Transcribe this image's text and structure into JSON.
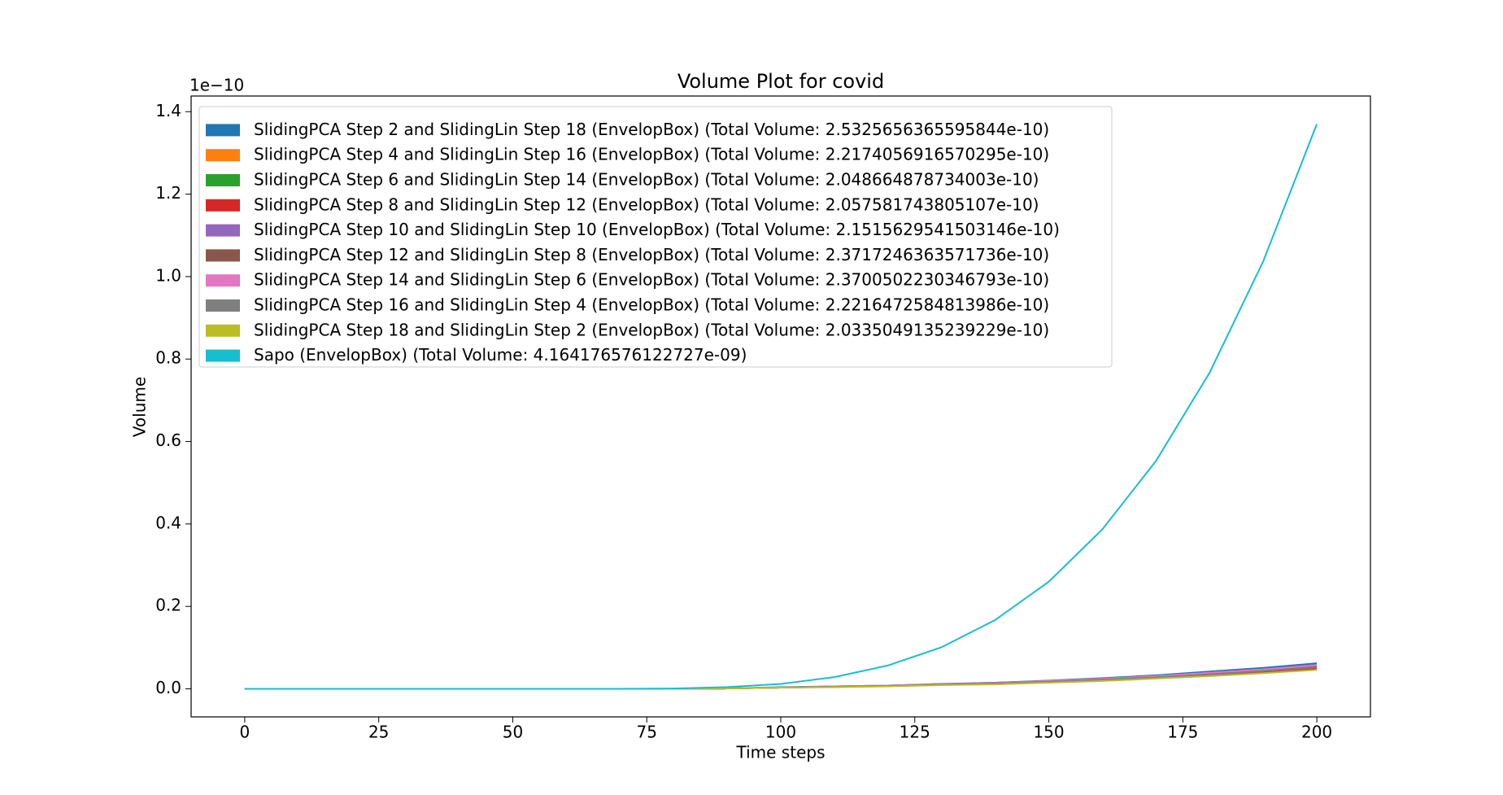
{
  "chart_data": {
    "type": "line",
    "title": "Volume Plot for covid",
    "x_label": "Time steps",
    "y_label": "Volume",
    "y_offset_label": "1e−10",
    "x": [
      0,
      10,
      20,
      30,
      40,
      50,
      60,
      70,
      80,
      90,
      100,
      110,
      120,
      130,
      140,
      150,
      160,
      170,
      180,
      190,
      200
    ],
    "xlim": [
      -10,
      210
    ],
    "xticks": [
      0,
      25,
      50,
      75,
      100,
      125,
      150,
      175,
      200
    ],
    "ylim": [
      -0.068,
      1.438
    ],
    "yticks": [
      {
        "value": 0,
        "label": "0.0"
      },
      0.2,
      0.4,
      0.6,
      0.8,
      {
        "value": 1,
        "label": "1.0"
      },
      1.2,
      1.4
    ],
    "legend": "upper left",
    "series": [
      {
        "name": "SlidingPCA Step 2 and SlidingLin Step 18 (EnvelopBox) (Total Volume: 2.5325656365595844e-10)",
        "color": "#1f77b4",
        "values": [
          0,
          0,
          0,
          0,
          0,
          0,
          0,
          0,
          0,
          0.001,
          0.004,
          0.006,
          0.008,
          0.012,
          0.015,
          0.02,
          0.026,
          0.033,
          0.042,
          0.051,
          0.062
        ]
      },
      {
        "name": "SlidingPCA Step 4 and SlidingLin Step 16 (EnvelopBox) (Total Volume: 2.2174056916570295e-10)",
        "color": "#ff7f0e",
        "values": [
          0,
          0,
          0,
          0,
          0,
          0,
          0,
          0,
          0,
          0.001,
          0.003,
          0.005,
          0.007,
          0.011,
          0.014,
          0.018,
          0.023,
          0.03,
          0.037,
          0.046,
          0.055
        ]
      },
      {
        "name": "SlidingPCA Step 6 and SlidingLin Step 14 (EnvelopBox) (Total Volume: 2.048664878734003e-10)",
        "color": "#2ca02c",
        "values": [
          0,
          0,
          0,
          0,
          0,
          0,
          0,
          0,
          0,
          0.001,
          0.003,
          0.005,
          0.007,
          0.01,
          0.012,
          0.016,
          0.021,
          0.027,
          0.034,
          0.041,
          0.05
        ]
      },
      {
        "name": "SlidingPCA Step 8 and SlidingLin Step 12 (EnvelopBox) (Total Volume: 2.057581743805107e-10)",
        "color": "#d62728",
        "values": [
          0,
          0,
          0,
          0,
          0,
          0,
          0,
          0,
          0,
          0.001,
          0.003,
          0.005,
          0.007,
          0.01,
          0.013,
          0.016,
          0.021,
          0.027,
          0.033,
          0.041,
          0.049
        ]
      },
      {
        "name": "SlidingPCA Step 10 and SlidingLin Step 10 (EnvelopBox) (Total Volume: 2.1515629541503146e-10)",
        "color": "#9467bd",
        "values": [
          0,
          0,
          0,
          0,
          0,
          0,
          0,
          0,
          0,
          0.001,
          0.003,
          0.006,
          0.008,
          0.011,
          0.015,
          0.019,
          0.025,
          0.031,
          0.039,
          0.048,
          0.058
        ]
      },
      {
        "name": "SlidingPCA Step 12 and SlidingLin Step 8 (EnvelopBox) (Total Volume: 2.3717246363571736e-10)",
        "color": "#8c564b",
        "values": [
          0,
          0,
          0,
          0,
          0,
          0,
          0,
          0,
          0,
          0.001,
          0.003,
          0.005,
          0.007,
          0.011,
          0.014,
          0.018,
          0.023,
          0.03,
          0.037,
          0.046,
          0.055
        ]
      },
      {
        "name": "SlidingPCA Step 14 and SlidingLin Step 6 (EnvelopBox) (Total Volume: 2.3700502230346793e-10)",
        "color": "#e377c2",
        "values": [
          0,
          0,
          0,
          0,
          0,
          0,
          0,
          0,
          0,
          0.001,
          0.003,
          0.006,
          0.008,
          0.011,
          0.014,
          0.019,
          0.024,
          0.031,
          0.039,
          0.047,
          0.057
        ]
      },
      {
        "name": "SlidingPCA Step 16 and SlidingLin Step 4 (EnvelopBox) (Total Volume: 2.2216472584813986e-10)",
        "color": "#7f7f7f",
        "values": [
          0,
          0,
          0,
          0,
          0,
          0,
          0,
          0,
          0,
          0.001,
          0.003,
          0.005,
          0.007,
          0.01,
          0.013,
          0.017,
          0.022,
          0.028,
          0.035,
          0.043,
          0.052
        ]
      },
      {
        "name": "SlidingPCA Step 18 and SlidingLin Step 2 (EnvelopBox) (Total Volume: 2.0335049135239229e-10)",
        "color": "#bcbd22",
        "values": [
          0,
          0,
          0,
          0,
          0,
          0,
          0,
          0,
          0,
          0.001,
          0.003,
          0.004,
          0.006,
          0.009,
          0.011,
          0.015,
          0.019,
          0.025,
          0.031,
          0.038,
          0.046
        ]
      },
      {
        "name": "Sapo (EnvelopBox) (Total Volume: 4.164176576122727e-09)",
        "color": "#17becf",
        "values": [
          0,
          0,
          0,
          0,
          0,
          0,
          0,
          0.0001,
          0.0009,
          0.0042,
          0.012,
          0.0285,
          0.0567,
          0.101,
          0.167,
          0.26,
          0.387,
          0.553,
          0.767,
          1.037,
          1.37
        ]
      }
    ]
  }
}
